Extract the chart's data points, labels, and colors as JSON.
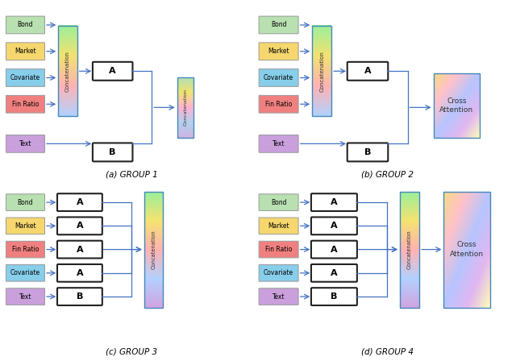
{
  "arrow_color": "#4472c4",
  "input_labels_12": [
    "Bond",
    "Market",
    "Covariate",
    "Fin Ratio"
  ],
  "input_colors_12": [
    "#b8e0b0",
    "#f5d76e",
    "#87ceeb",
    "#f08080"
  ],
  "text_color": "#c9a0dc",
  "input_labels_34": [
    "Bond",
    "Market",
    "Fin Ratio",
    "Covariate",
    "Text"
  ],
  "input_colors_34": [
    "#b8e0b0",
    "#f5d76e",
    "#f08080",
    "#87ceeb",
    "#c9a0dc"
  ],
  "model_labels_34": [
    "A",
    "A",
    "A",
    "A",
    "B"
  ],
  "concat_colors": [
    "#90ee90",
    "#f0e060",
    "#ffaaaa",
    "#aaccff"
  ],
  "cross_colors_diag": [
    "#f5d76e",
    "#ffb6c1",
    "#aabbff",
    "#ddaaee",
    "#ffffaa"
  ],
  "concat2_colors": [
    "#aaddaa",
    "#f0e060",
    "#ffaacc",
    "#aaccee",
    "#ccaadd"
  ],
  "concat34_colors": [
    "#90ee90",
    "#f5e060",
    "#ffaaaa",
    "#aaccff",
    "#cc99dd"
  ],
  "group_titles": [
    "(a) GROUP 1",
    "(b) GROUP 2",
    "(c) GROUP 3",
    "(d) GROUP 4"
  ]
}
